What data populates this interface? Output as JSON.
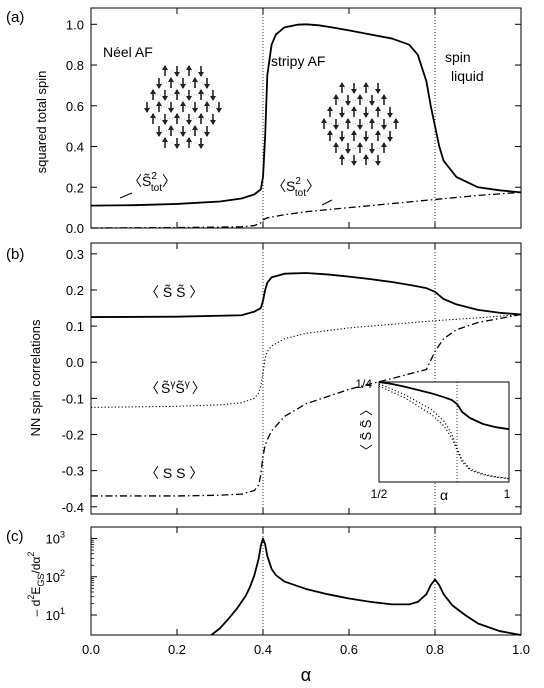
{
  "chart_data": [
    {
      "panel_label": "(a)",
      "type": "line",
      "ylabel": "squared total spin",
      "ylim": [
        0,
        1.08
      ],
      "yticks": [
        0.0,
        0.2,
        0.4,
        0.6,
        0.8,
        1.0
      ],
      "ytick_labels": [
        "0.0",
        "0.2",
        "0.4",
        "0.6",
        "0.8",
        "1.0"
      ],
      "xlim": [
        0,
        1
      ],
      "vlines": [
        0.4,
        0.8
      ],
      "phase_labels": [
        "Néel AF",
        "stripy AF",
        "spin",
        "liquid"
      ],
      "series_labels": {
        "tilde": {
          "open": "〈",
          "base": "S̃",
          "sup": "2",
          "sub": "tot",
          "close": "〉"
        },
        "plain": {
          "open": "〈",
          "base": "S",
          "sup": "2",
          "sub": "tot",
          "close": "〉"
        }
      },
      "series": [
        {
          "style": "solid",
          "x": [
            0.0,
            0.1,
            0.2,
            0.3,
            0.35,
            0.38,
            0.395,
            0.4,
            0.405,
            0.41,
            0.42,
            0.43,
            0.45,
            0.48,
            0.5,
            0.53,
            0.56,
            0.6,
            0.65,
            0.7,
            0.74,
            0.76,
            0.78,
            0.79,
            0.8,
            0.81,
            0.82,
            0.85,
            0.9,
            0.95,
            1.0
          ],
          "y": [
            0.11,
            0.112,
            0.118,
            0.13,
            0.145,
            0.165,
            0.19,
            0.25,
            0.45,
            0.75,
            0.9,
            0.95,
            0.985,
            0.998,
            1.0,
            0.995,
            0.985,
            0.97,
            0.95,
            0.93,
            0.9,
            0.85,
            0.72,
            0.6,
            0.5,
            0.4,
            0.33,
            0.25,
            0.2,
            0.185,
            0.175
          ]
        },
        {
          "style": "dashdot",
          "x": [
            0.0,
            0.2,
            0.35,
            0.38,
            0.395,
            0.4,
            0.41,
            0.45,
            0.5,
            0.6,
            0.7,
            0.8,
            0.9,
            1.0
          ],
          "y": [
            0.0,
            0.002,
            0.006,
            0.012,
            0.025,
            0.04,
            0.05,
            0.065,
            0.08,
            0.1,
            0.12,
            0.14,
            0.16,
            0.175
          ]
        }
      ]
    },
    {
      "panel_label": "(b)",
      "type": "line",
      "ylabel": "NN spin correlations",
      "ylim": [
        -0.42,
        0.33
      ],
      "yticks": [
        -0.4,
        -0.3,
        -0.2,
        -0.1,
        0.0,
        0.1,
        0.2,
        0.3
      ],
      "ytick_labels": [
        "-0.4",
        "-0.3",
        "-0.2",
        "-0.1",
        "0.0",
        "0.1",
        "0.2",
        "0.3"
      ],
      "xlim": [
        0,
        1
      ],
      "vlines": [
        0.4,
        0.8
      ],
      "series_labels": {
        "tilde_tilde": "〈 S̃ S̃ 〉",
        "gamma": {
          "open": "〈",
          "a": "S̃",
          "sup_a": "γ",
          "b": "S̃",
          "sup_b": "γ",
          "close": "〉"
        },
        "plain": "〈 S S 〉"
      },
      "series": [
        {
          "style": "solid",
          "x": [
            0.0,
            0.2,
            0.35,
            0.38,
            0.395,
            0.4,
            0.405,
            0.41,
            0.42,
            0.45,
            0.5,
            0.55,
            0.6,
            0.65,
            0.7,
            0.75,
            0.78,
            0.8,
            0.82,
            0.85,
            0.9,
            0.95,
            1.0
          ],
          "y": [
            0.125,
            0.126,
            0.13,
            0.14,
            0.15,
            0.17,
            0.2,
            0.22,
            0.235,
            0.245,
            0.247,
            0.243,
            0.237,
            0.23,
            0.222,
            0.212,
            0.205,
            0.195,
            0.175,
            0.16,
            0.145,
            0.137,
            0.132
          ]
        },
        {
          "style": "dotted",
          "x": [
            0.0,
            0.2,
            0.3,
            0.35,
            0.38,
            0.39,
            0.395,
            0.4,
            0.405,
            0.41,
            0.42,
            0.45,
            0.5,
            0.6,
            0.7,
            0.8,
            0.9,
            1.0
          ],
          "y": [
            -0.125,
            -0.122,
            -0.118,
            -0.112,
            -0.1,
            -0.085,
            -0.065,
            -0.03,
            0.01,
            0.03,
            0.045,
            0.065,
            0.08,
            0.095,
            0.105,
            0.115,
            0.123,
            0.132
          ]
        },
        {
          "style": "dashdot",
          "x": [
            0.0,
            0.2,
            0.3,
            0.35,
            0.38,
            0.39,
            0.395,
            0.4,
            0.405,
            0.41,
            0.42,
            0.45,
            0.5,
            0.6,
            0.7,
            0.78,
            0.8,
            0.82,
            0.85,
            0.9,
            1.0
          ],
          "y": [
            -0.37,
            -0.37,
            -0.368,
            -0.365,
            -0.355,
            -0.34,
            -0.31,
            -0.26,
            -0.23,
            -0.215,
            -0.19,
            -0.15,
            -0.115,
            -0.075,
            -0.045,
            -0.02,
            0.03,
            0.065,
            0.09,
            0.11,
            0.132
          ]
        }
      ],
      "inset": {
        "xlim": [
          0.5,
          1.0
        ],
        "ylim": [
          0.0,
          0.25
        ],
        "xtick_labels": [
          "1/2",
          "α",
          "1"
        ],
        "ytick_label": "1/4",
        "ylabel": "〈 S̃ S̃ 〉",
        "vline": 0.8,
        "series": [
          {
            "style": "solid",
            "x": [
              0.5,
              0.55,
              0.6,
              0.65,
              0.7,
              0.75,
              0.78,
              0.8,
              0.82,
              0.85,
              0.9,
              0.95,
              1.0
            ],
            "y": [
              0.25,
              0.245,
              0.238,
              0.23,
              0.222,
              0.212,
              0.205,
              0.195,
              0.175,
              0.16,
              0.145,
              0.137,
              0.132
            ]
          },
          {
            "style": "dotted",
            "x": [
              0.5,
              0.55,
              0.6,
              0.65,
              0.7,
              0.75,
              0.78,
              0.8,
              0.82,
              0.85,
              0.9,
              0.95,
              1.0
            ],
            "y": [
              0.24,
              0.225,
              0.21,
              0.19,
              0.17,
              0.14,
              0.11,
              0.08,
              0.05,
              0.03,
              0.018,
              0.012,
              0.008
            ]
          },
          {
            "style": "dotted",
            "x": [
              0.5,
              0.55,
              0.6,
              0.65,
              0.7,
              0.75,
              0.78,
              0.8,
              0.82,
              0.85,
              0.9,
              0.95,
              1.0
            ],
            "y": [
              0.245,
              0.232,
              0.218,
              0.2,
              0.182,
              0.152,
              0.12,
              0.085,
              0.055,
              0.033,
              0.02,
              0.013,
              0.009
            ]
          }
        ]
      }
    },
    {
      "panel_label": "(c)",
      "type": "line",
      "ylabel": {
        "minus": "– d",
        "sup1": "2",
        "E": "E",
        "sub": "GS",
        "slash": "/dα",
        "sup2": "2"
      },
      "yscale": "log",
      "ylim": [
        3,
        2000
      ],
      "yticks": [
        10,
        100,
        1000
      ],
      "ytick_labels": [
        {
          "base": "10",
          "exp": "1"
        },
        {
          "base": "10",
          "exp": "2"
        },
        {
          "base": "10",
          "exp": "3"
        }
      ],
      "xlim": [
        0,
        1
      ],
      "xticks": [
        0.0,
        0.2,
        0.4,
        0.6,
        0.8,
        1.0
      ],
      "xtick_labels": [
        "0.0",
        "0.2",
        "0.4",
        "0.6",
        "0.8",
        "1.0"
      ],
      "xlabel": "α",
      "vlines": [
        0.4,
        0.8
      ],
      "series": [
        {
          "style": "solid",
          "x": [
            0.28,
            0.3,
            0.32,
            0.34,
            0.36,
            0.37,
            0.38,
            0.39,
            0.395,
            0.4,
            0.405,
            0.41,
            0.42,
            0.43,
            0.45,
            0.5,
            0.55,
            0.6,
            0.65,
            0.7,
            0.74,
            0.76,
            0.78,
            0.79,
            0.8,
            0.81,
            0.82,
            0.84,
            0.87,
            0.9,
            0.95,
            1.0
          ],
          "y": [
            3,
            4.5,
            8,
            15,
            32,
            55,
            110,
            300,
            650,
            1000,
            700,
            350,
            160,
            110,
            75,
            48,
            35,
            27,
            22,
            19,
            19,
            22,
            35,
            60,
            85,
            60,
            35,
            18,
            10,
            6,
            3.8,
            3
          ]
        }
      ]
    }
  ]
}
